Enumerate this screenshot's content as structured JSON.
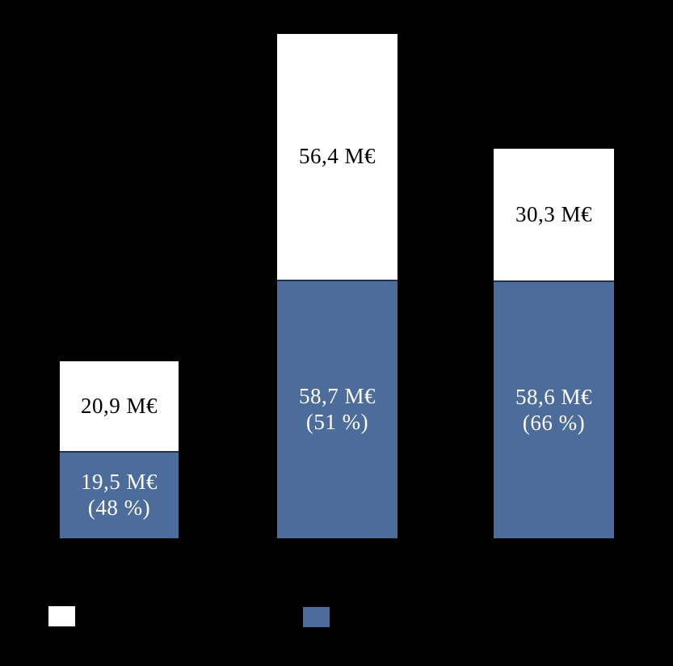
{
  "canvas": {
    "background": "#000000"
  },
  "colors": {
    "series_top_white": "#FFFFFF",
    "series_bottom_blue": "#4C6C9C",
    "segment_divider": "#1E3250",
    "label_on_white": "#000000",
    "label_on_blue": "#FFFFFF"
  },
  "chart_data": {
    "type": "bar",
    "stacked": true,
    "orientation": "vertical",
    "unit": "M€",
    "categories": [
      "",
      "",
      ""
    ],
    "series": [
      {
        "name": "bottom-blue-segment",
        "color": "#4C6C9C",
        "values": [
          19.5,
          58.7,
          58.6
        ],
        "share_percent": [
          48,
          51,
          66
        ],
        "data_labels": [
          "19,5 M€ (48 %)",
          "58,7 M€ (51 %)",
          "58,6 M€ (66 %)"
        ]
      },
      {
        "name": "top-white-segment",
        "color": "#FFFFFF",
        "values": [
          20.9,
          56.4,
          30.3
        ],
        "data_labels": [
          "20,9 M€",
          "56,4 M€",
          "30,3 M€"
        ]
      }
    ],
    "stack_totals": [
      40.4,
      115.1,
      88.9
    ],
    "title": "",
    "xlabel": "",
    "ylabel": "",
    "axes_visible": false,
    "grid": false,
    "legend": {
      "position": "bottom",
      "swatch_colors": [
        "#FFFFFF",
        "#4C6C9C"
      ],
      "labels_visible": false
    }
  },
  "bars": [
    {
      "top_label": "20,9 M€",
      "bottom_value": "19,5 M€",
      "bottom_percent": "(48 %)"
    },
    {
      "top_label": "56,4 M€",
      "bottom_value": "58,7 M€",
      "bottom_percent": "(51 %)"
    },
    {
      "top_label": "30,3 M€",
      "bottom_value": "58,6 M€",
      "bottom_percent": "(66 %)"
    }
  ]
}
